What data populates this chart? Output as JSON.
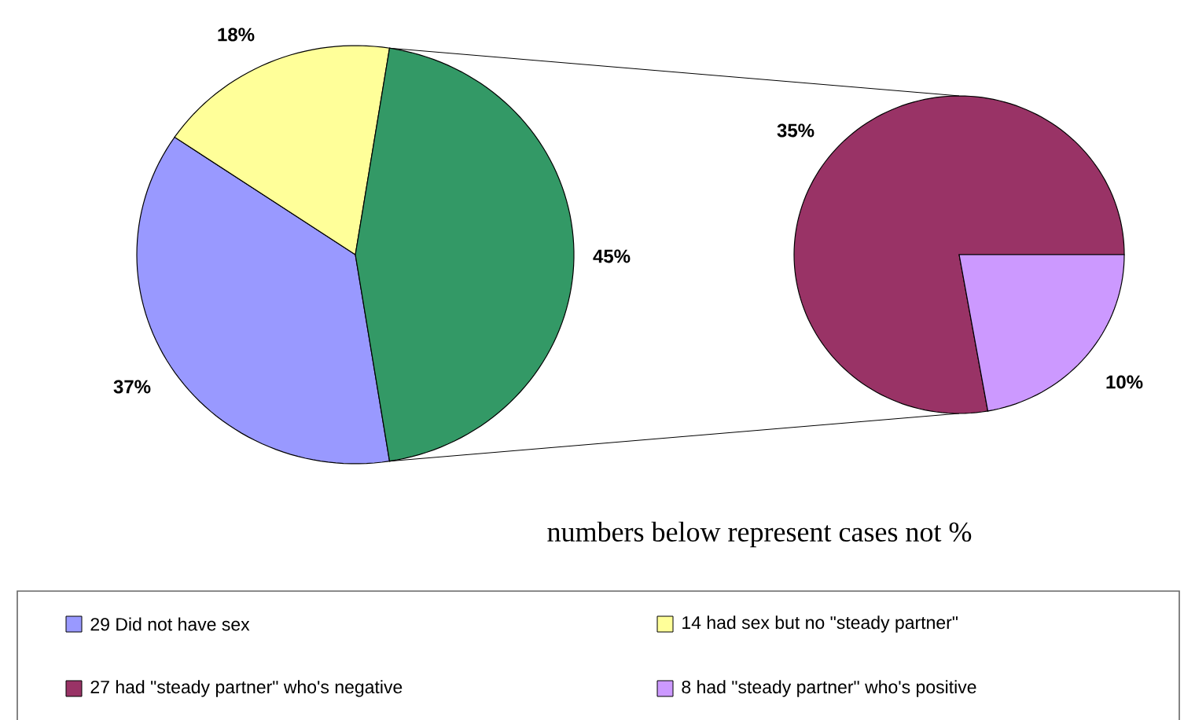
{
  "chart_data": [
    {
      "type": "pie",
      "categories": [
        "29 Did not have sex",
        "14 had sex but no \"steady partner\"",
        null
      ],
      "values": [
        37,
        18,
        45
      ],
      "colors": [
        "#9999ff",
        "#ffff99",
        "#339966"
      ],
      "value_labels": [
        "37%",
        "18%",
        "45%"
      ],
      "legend": "bottom",
      "annotations": [
        "numbers below represent cases not %"
      ]
    },
    {
      "type": "pie",
      "categories": [
        "27 had \"steady partner\" who's negative",
        "8 had \"steady partner\" who's positive"
      ],
      "values": [
        35,
        10
      ],
      "colors": [
        "#993366",
        "#cc99ff"
      ],
      "value_labels": [
        "35%",
        "10%"
      ],
      "legend": "bottom"
    }
  ]
}
